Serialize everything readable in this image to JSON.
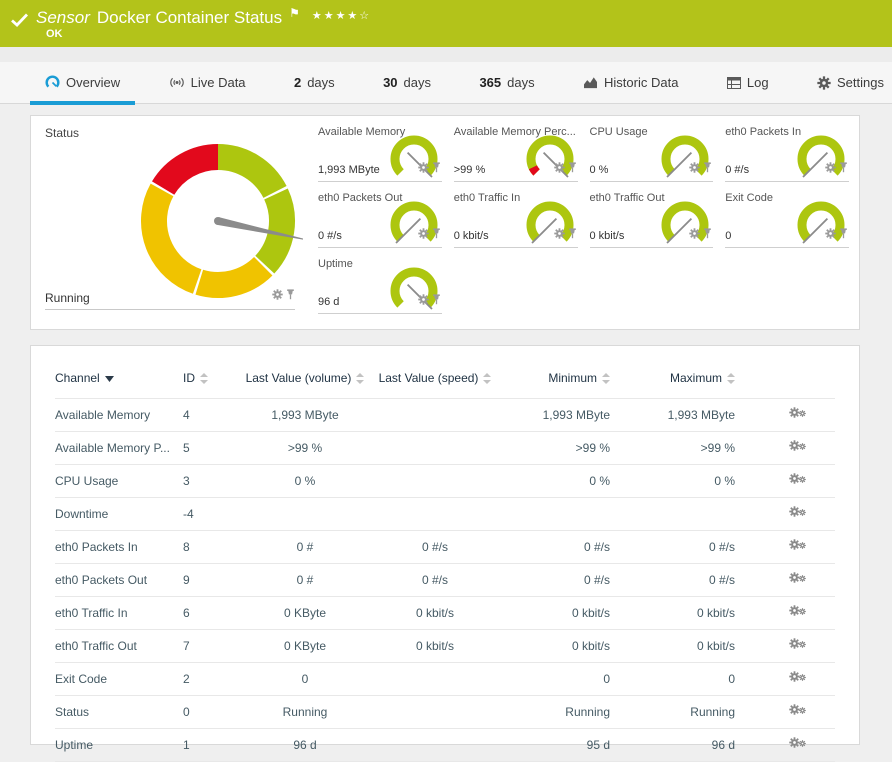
{
  "colors": {
    "header_green": "#b3c31a",
    "accent_blue": "#1a9cd5",
    "gauge_green": "#adc60f",
    "gauge_yellow": "#f0c300",
    "gauge_red": "#e2091c",
    "needle_gray": "#8b8b8b",
    "icon_gray": "#9a9a9a",
    "tab_icon_gray": "#5a5a5a"
  },
  "header": {
    "kind": "Sensor",
    "title": "Docker Container Status",
    "status": "OK",
    "rating": "★★★★☆",
    "flag": "⚑"
  },
  "tabs": [
    {
      "id": "overview",
      "label": "Overview",
      "icon": "gauge-icon",
      "active": true
    },
    {
      "id": "live-data",
      "label": "Live Data",
      "icon": "live-icon",
      "active": false
    },
    {
      "id": "days-2",
      "num": "2",
      "label": "days",
      "active": false
    },
    {
      "id": "days-30",
      "num": "30",
      "label": "days",
      "active": false
    },
    {
      "id": "days-365",
      "num": "365",
      "label": "days",
      "active": false
    },
    {
      "id": "historic-data",
      "label": "Historic Data",
      "icon": "area-chart-icon",
      "active": false
    },
    {
      "id": "log",
      "label": "Log",
      "icon": "log-icon",
      "active": false
    },
    {
      "id": "settings",
      "label": "Settings",
      "icon": "gear-icon",
      "active": false
    }
  ],
  "status_gauge": {
    "label": "Status",
    "value": "Running",
    "needle_deg": 102,
    "segments": [
      {
        "from": 0,
        "to": 63,
        "color": "green"
      },
      {
        "from": 65,
        "to": 133,
        "color": "green"
      },
      {
        "from": 135,
        "to": 197,
        "color": "yellow"
      },
      {
        "from": 199,
        "to": 299,
        "color": "yellow"
      },
      {
        "from": 301,
        "to": 360,
        "color": "red"
      }
    ]
  },
  "gauges": [
    {
      "id": "available-memory",
      "title": "Available Memory",
      "value": "1,993 MByte",
      "needle": "max",
      "red_tip": false
    },
    {
      "id": "available-memory-percent",
      "title": "Available Memory Perc...",
      "value": ">99 %",
      "needle": "max",
      "red_tip": true
    },
    {
      "id": "cpu-usage",
      "title": "CPU Usage",
      "value": "0 %",
      "needle": "min",
      "red_tip": false
    },
    {
      "id": "eth0-packets-in",
      "title": "eth0 Packets In",
      "value": "0 #/s",
      "needle": "min",
      "red_tip": false
    },
    {
      "id": "eth0-packets-out",
      "title": "eth0 Packets Out",
      "value": "0 #/s",
      "needle": "min",
      "red_tip": false
    },
    {
      "id": "eth0-traffic-in",
      "title": "eth0 Traffic In",
      "value": "0 kbit/s",
      "needle": "min",
      "red_tip": false
    },
    {
      "id": "eth0-traffic-out",
      "title": "eth0 Traffic Out",
      "value": "0 kbit/s",
      "needle": "min",
      "red_tip": false
    },
    {
      "id": "exit-code",
      "title": "Exit Code",
      "value": "0",
      "needle": "min",
      "red_tip": false
    },
    {
      "id": "uptime",
      "title": "Uptime",
      "value": "96 d",
      "needle": "max",
      "red_tip": false
    }
  ],
  "table": {
    "columns": [
      {
        "id": "channel",
        "label": "Channel",
        "sort": "desc",
        "align": "al"
      },
      {
        "id": "id",
        "label": "ID",
        "sort": "both",
        "align": "al"
      },
      {
        "id": "last-value-volume",
        "label": "Last Value (volume)",
        "sort": "both",
        "align": "ac"
      },
      {
        "id": "last-value-speed",
        "label": "Last Value (speed)",
        "sort": "both",
        "align": "ac"
      },
      {
        "id": "minimum",
        "label": "Minimum",
        "sort": "both",
        "align": "ar"
      },
      {
        "id": "maximum",
        "label": "Maximum",
        "sort": "both",
        "align": "ar"
      }
    ],
    "rows": [
      {
        "channel": "Available Memory",
        "id": "4",
        "last_volume": "1,993 MByte",
        "last_speed": "",
        "min": "1,993 MByte",
        "max": "1,993 MByte"
      },
      {
        "channel": "Available Memory P...",
        "id": "5",
        "last_volume": ">99 %",
        "last_speed": "",
        "min": ">99 %",
        "max": ">99 %"
      },
      {
        "channel": "CPU Usage",
        "id": "3",
        "last_volume": "0 %",
        "last_speed": "",
        "min": "0 %",
        "max": "0 %"
      },
      {
        "channel": "Downtime",
        "id": "-4",
        "last_volume": "",
        "last_speed": "",
        "min": "",
        "max": ""
      },
      {
        "channel": "eth0 Packets In",
        "id": "8",
        "last_volume": "0 #",
        "last_speed": "0 #/s",
        "min": "0 #/s",
        "max": "0 #/s"
      },
      {
        "channel": "eth0 Packets Out",
        "id": "9",
        "last_volume": "0 #",
        "last_speed": "0 #/s",
        "min": "0 #/s",
        "max": "0 #/s"
      },
      {
        "channel": "eth0 Traffic In",
        "id": "6",
        "last_volume": "0 KByte",
        "last_speed": "0 kbit/s",
        "min": "0 kbit/s",
        "max": "0 kbit/s"
      },
      {
        "channel": "eth0 Traffic Out",
        "id": "7",
        "last_volume": "0 KByte",
        "last_speed": "0 kbit/s",
        "min": "0 kbit/s",
        "max": "0 kbit/s"
      },
      {
        "channel": "Exit Code",
        "id": "2",
        "last_volume": "0",
        "last_speed": "",
        "min": "0",
        "max": "0"
      },
      {
        "channel": "Status",
        "id": "0",
        "last_volume": "Running",
        "last_speed": "",
        "min": "Running",
        "max": "Running"
      },
      {
        "channel": "Uptime",
        "id": "1",
        "last_volume": "96 d",
        "last_speed": "",
        "min": "95 d",
        "max": "96 d"
      }
    ]
  }
}
